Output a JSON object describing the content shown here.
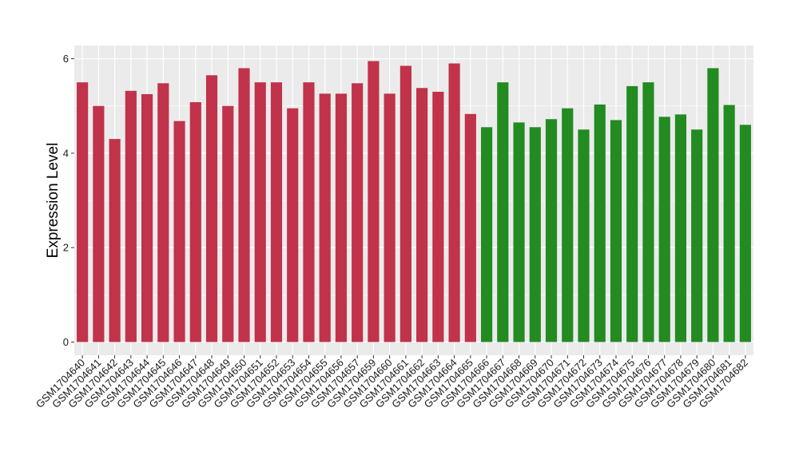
{
  "chart_data": {
    "type": "bar",
    "title": "",
    "xlabel": "",
    "ylabel": "Expression Level",
    "ylim": [
      -0.28,
      6.28
    ],
    "yticks": [
      0,
      2,
      4,
      6
    ],
    "grid": true,
    "colors": {
      "group1": "#c0334a",
      "group2": "#228b22",
      "panel": "#ebebeb",
      "gridline": "#ffffff"
    },
    "categories": [
      "GSM1704640",
      "GSM1704641",
      "GSM1704642",
      "GSM1704643",
      "GSM1704644",
      "GSM1704645",
      "GSM1704646",
      "GSM1704647",
      "GSM1704648",
      "GSM1704649",
      "GSM1704650",
      "GSM1704651",
      "GSM1704652",
      "GSM1704653",
      "GSM1704654",
      "GSM1704655",
      "GSM1704656",
      "GSM1704657",
      "GSM1704659",
      "GSM1704660",
      "GSM1704661",
      "GSM1704662",
      "GSM1704663",
      "GSM1704664",
      "GSM1704665",
      "GSM1704666",
      "GSM1704667",
      "GSM1704668",
      "GSM1704669",
      "GSM1704670",
      "GSM1704671",
      "GSM1704672",
      "GSM1704673",
      "GSM1704674",
      "GSM1704675",
      "GSM1704676",
      "GSM1704677",
      "GSM1704678",
      "GSM1704679",
      "GSM1704680",
      "GSM1704681",
      "GSM1704682"
    ],
    "values": [
      5.5,
      5.0,
      4.3,
      5.32,
      5.25,
      5.48,
      4.68,
      5.08,
      5.65,
      5.0,
      5.8,
      5.5,
      5.5,
      4.95,
      5.5,
      5.26,
      5.26,
      5.48,
      5.95,
      5.26,
      5.85,
      5.38,
      5.3,
      5.9,
      4.83,
      4.55,
      5.5,
      4.65,
      4.55,
      4.72,
      4.95,
      4.5,
      5.03,
      4.7,
      5.42,
      5.5,
      4.77,
      4.82,
      4.5,
      5.8,
      5.02,
      4.6
    ],
    "groups": [
      1,
      1,
      1,
      1,
      1,
      1,
      1,
      1,
      1,
      1,
      1,
      1,
      1,
      1,
      1,
      1,
      1,
      1,
      1,
      1,
      1,
      1,
      1,
      1,
      1,
      2,
      2,
      2,
      2,
      2,
      2,
      2,
      2,
      2,
      2,
      2,
      2,
      2,
      2,
      2,
      2,
      2
    ]
  }
}
